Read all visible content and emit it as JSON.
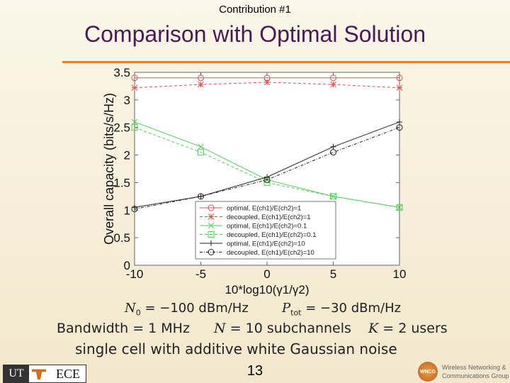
{
  "header": {
    "topline": "Contribution #1",
    "title": "Comparison with Optimal Solution"
  },
  "chart_data": {
    "type": "line",
    "xlabel": "10*log10(γ1/γ2)",
    "ylabel": "Overall capacity (bits/s/Hz)",
    "xlim": [
      -10,
      10
    ],
    "ylim": [
      0,
      3.5
    ],
    "xticks": [
      "-10",
      "-5",
      "0",
      "5",
      "10"
    ],
    "yticks": [
      "0",
      "0.5",
      "1",
      "1.5",
      "2",
      "2.5",
      "3",
      "3.5"
    ],
    "x": [
      -10,
      -5,
      0,
      5,
      10
    ],
    "grid": false,
    "legend_position": "bottom-right",
    "series": [
      {
        "name": "optimal, E(ch1)/E(ch2)=1",
        "color": "#e05050",
        "dash": "",
        "marker": "circle",
        "values": [
          3.4,
          3.4,
          3.4,
          3.4,
          3.4
        ]
      },
      {
        "name": "decoupled, E(ch1)/E(ch2)=1",
        "color": "#e05050",
        "dash": "4,3",
        "marker": "star",
        "values": [
          3.22,
          3.28,
          3.32,
          3.28,
          3.22
        ]
      },
      {
        "name": "optimal, E(ch1)/E(ch2)=0.1",
        "color": "#55cc55",
        "dash": "",
        "marker": "x",
        "values": [
          2.6,
          2.15,
          1.55,
          1.25,
          1.05
        ]
      },
      {
        "name": "decoupled, E(ch1)/E(ch2)=0.1",
        "color": "#55cc55",
        "dash": "4,3",
        "marker": "square",
        "values": [
          2.5,
          2.05,
          1.5,
          1.25,
          1.05
        ]
      },
      {
        "name": "optimal, E(ch1)/E(ch2)=10",
        "color": "#222222",
        "dash": "",
        "marker": "plus",
        "values": [
          1.05,
          1.25,
          1.6,
          2.15,
          2.6
        ]
      },
      {
        "name": "decoupled, E(ch1)/E(ch2)=10",
        "color": "#222222",
        "dash": "4,2,1,2",
        "marker": "circle",
        "values": [
          1.02,
          1.25,
          1.55,
          2.05,
          2.5
        ]
      }
    ]
  },
  "equations": {
    "n0_symbol": "N",
    "n0_sub": "0",
    "n0_value": " = −100 dBm/Hz",
    "ptot_symbol": "P",
    "ptot_sub": "tot",
    "ptot_value": " = −30 dBm/Hz",
    "bandwidth": "Bandwidth = 1 MHz",
    "n_symbol": "N",
    "subchannels": " = 10 subchannels",
    "k_symbol": "K",
    "users": " = 2 users",
    "noise": "single cell with additive white Gaussian noise"
  },
  "footer": {
    "page_number": "13",
    "left_logo_ut": "UT",
    "left_logo_ece": "ECE",
    "right_logo_seal": "WNCG",
    "right_logo_line1": "Wireless Networking &",
    "right_logo_line2": "Communications Group"
  }
}
